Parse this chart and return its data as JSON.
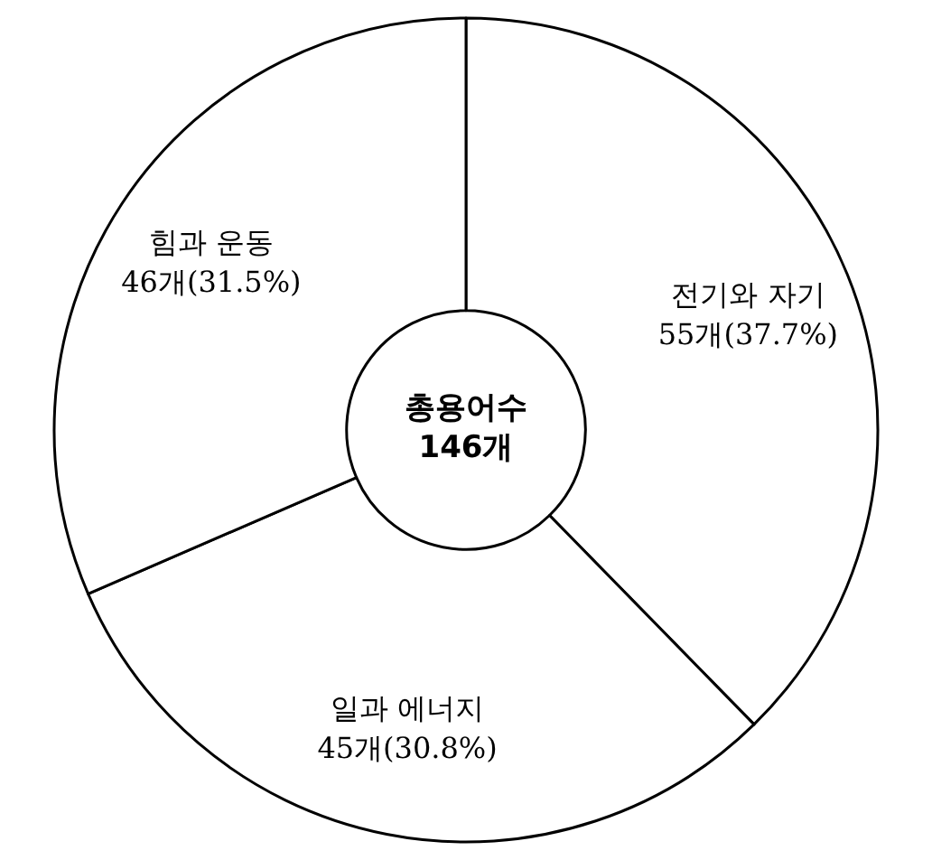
{
  "chart_data": {
    "type": "donut",
    "categories": [
      "전기와 자기",
      "일과 에너지",
      "힘과 운동"
    ],
    "values": [
      55,
      45,
      46
    ],
    "value_labels": [
      "55개(37.7%)",
      "45개(30.8%)",
      "46개(31.5%)"
    ],
    "colors": [
      "#ffffff",
      "#ffffff",
      "#ffffff"
    ],
    "annotations": [
      "총용어수\n146개"
    ]
  }
}
